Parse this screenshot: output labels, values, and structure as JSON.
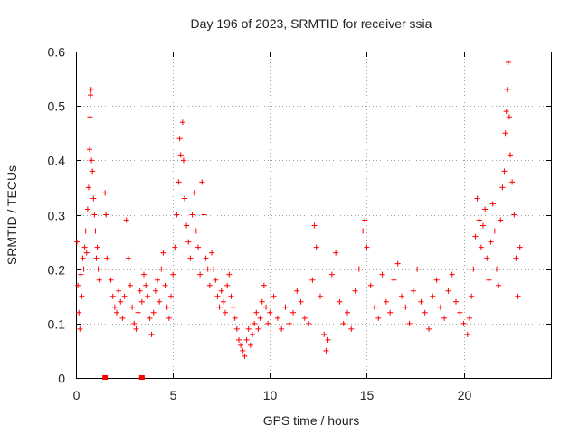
{
  "chart_data": {
    "type": "scatter",
    "title": "Day 196 of 2023, SRMTID for receiver ssia",
    "xlabel": "GPS time / hours",
    "ylabel": "SRMTID / TECUs",
    "xlim": [
      0,
      24.5
    ],
    "ylim": [
      0,
      0.6
    ],
    "xticks": [
      0,
      5,
      10,
      15,
      20
    ],
    "yticks": [
      0,
      0.1,
      0.2,
      0.3,
      0.4,
      0.5,
      0.6
    ],
    "xtick_labels": [
      "0",
      "5",
      "10",
      "15",
      "20"
    ],
    "ytick_labels": [
      "0",
      "0.1",
      "0.2",
      "0.3",
      "0.4",
      "0.5",
      "0.6"
    ],
    "grid": true,
    "marker": "+",
    "color": "#ff0000",
    "series": [
      {
        "name": "SRMTID",
        "marker": "+",
        "points": [
          [
            0.05,
            0.25
          ],
          [
            0.1,
            0.17
          ],
          [
            0.15,
            0.12
          ],
          [
            0.2,
            0.09
          ],
          [
            0.25,
            0.19
          ],
          [
            0.3,
            0.15
          ],
          [
            0.35,
            0.22
          ],
          [
            0.4,
            0.2
          ],
          [
            0.45,
            0.24
          ],
          [
            0.5,
            0.27
          ],
          [
            0.55,
            0.23
          ],
          [
            0.6,
            0.31
          ],
          [
            0.65,
            0.35
          ],
          [
            0.7,
            0.42
          ],
          [
            0.72,
            0.48
          ],
          [
            0.75,
            0.52
          ],
          [
            0.78,
            0.53
          ],
          [
            0.8,
            0.4
          ],
          [
            0.85,
            0.38
          ],
          [
            0.9,
            0.33
          ],
          [
            0.95,
            0.3
          ],
          [
            1.0,
            0.27
          ],
          [
            1.05,
            0.22
          ],
          [
            1.1,
            0.24
          ],
          [
            1.15,
            0.2
          ],
          [
            1.2,
            0.18
          ],
          [
            1.5,
            0.34
          ],
          [
            1.55,
            0.3
          ],
          [
            1.6,
            0.22
          ],
          [
            1.7,
            0.2
          ],
          [
            1.8,
            0.18
          ],
          [
            1.9,
            0.15
          ],
          [
            2.0,
            0.13
          ],
          [
            2.1,
            0.12
          ],
          [
            2.2,
            0.16
          ],
          [
            2.3,
            0.14
          ],
          [
            2.4,
            0.11
          ],
          [
            2.5,
            0.15
          ],
          [
            2.6,
            0.29
          ],
          [
            2.7,
            0.22
          ],
          [
            2.8,
            0.17
          ],
          [
            2.9,
            0.13
          ],
          [
            3.0,
            0.1
          ],
          [
            3.1,
            0.09
          ],
          [
            3.2,
            0.12
          ],
          [
            3.3,
            0.16
          ],
          [
            3.4,
            0.14
          ],
          [
            3.5,
            0.19
          ],
          [
            3.6,
            0.17
          ],
          [
            3.7,
            0.15
          ],
          [
            3.8,
            0.11
          ],
          [
            3.9,
            0.08
          ],
          [
            4.0,
            0.12
          ],
          [
            4.1,
            0.16
          ],
          [
            4.2,
            0.18
          ],
          [
            4.3,
            0.14
          ],
          [
            4.4,
            0.2
          ],
          [
            4.5,
            0.23
          ],
          [
            4.6,
            0.17
          ],
          [
            4.7,
            0.13
          ],
          [
            4.8,
            0.11
          ],
          [
            4.9,
            0.15
          ],
          [
            5.0,
            0.19
          ],
          [
            5.1,
            0.24
          ],
          [
            5.2,
            0.3
          ],
          [
            5.3,
            0.36
          ],
          [
            5.35,
            0.44
          ],
          [
            5.4,
            0.41
          ],
          [
            5.5,
            0.47
          ],
          [
            5.55,
            0.4
          ],
          [
            5.6,
            0.33
          ],
          [
            5.7,
            0.28
          ],
          [
            5.8,
            0.25
          ],
          [
            5.9,
            0.22
          ],
          [
            6.0,
            0.3
          ],
          [
            6.1,
            0.34
          ],
          [
            6.2,
            0.27
          ],
          [
            6.3,
            0.24
          ],
          [
            6.4,
            0.19
          ],
          [
            6.5,
            0.36
          ],
          [
            6.6,
            0.3
          ],
          [
            6.7,
            0.22
          ],
          [
            6.8,
            0.2
          ],
          [
            6.9,
            0.17
          ],
          [
            7.0,
            0.23
          ],
          [
            7.1,
            0.2
          ],
          [
            7.2,
            0.18
          ],
          [
            7.3,
            0.15
          ],
          [
            7.4,
            0.13
          ],
          [
            7.5,
            0.16
          ],
          [
            7.6,
            0.14
          ],
          [
            7.7,
            0.12
          ],
          [
            7.8,
            0.17
          ],
          [
            7.9,
            0.19
          ],
          [
            8.0,
            0.15
          ],
          [
            8.1,
            0.13
          ],
          [
            8.2,
            0.11
          ],
          [
            8.3,
            0.09
          ],
          [
            8.4,
            0.07
          ],
          [
            8.5,
            0.06
          ],
          [
            8.6,
            0.05
          ],
          [
            8.7,
            0.04
          ],
          [
            8.8,
            0.07
          ],
          [
            8.9,
            0.09
          ],
          [
            9.0,
            0.06
          ],
          [
            9.1,
            0.08
          ],
          [
            9.2,
            0.1
          ],
          [
            9.3,
            0.12
          ],
          [
            9.4,
            0.09
          ],
          [
            9.5,
            0.11
          ],
          [
            9.6,
            0.14
          ],
          [
            9.7,
            0.17
          ],
          [
            9.8,
            0.13
          ],
          [
            9.9,
            0.1
          ],
          [
            10.0,
            0.12
          ],
          [
            10.2,
            0.15
          ],
          [
            10.4,
            0.11
          ],
          [
            10.6,
            0.09
          ],
          [
            10.8,
            0.13
          ],
          [
            11.0,
            0.1
          ],
          [
            11.2,
            0.12
          ],
          [
            11.4,
            0.16
          ],
          [
            11.6,
            0.14
          ],
          [
            11.8,
            0.11
          ],
          [
            12.0,
            0.1
          ],
          [
            12.2,
            0.18
          ],
          [
            12.3,
            0.28
          ],
          [
            12.4,
            0.24
          ],
          [
            12.6,
            0.15
          ],
          [
            12.8,
            0.08
          ],
          [
            12.9,
            0.05
          ],
          [
            13.0,
            0.07
          ],
          [
            13.2,
            0.19
          ],
          [
            13.4,
            0.23
          ],
          [
            13.6,
            0.14
          ],
          [
            13.8,
            0.1
          ],
          [
            14.0,
            0.12
          ],
          [
            14.2,
            0.09
          ],
          [
            14.4,
            0.16
          ],
          [
            14.6,
            0.2
          ],
          [
            14.8,
            0.27
          ],
          [
            14.9,
            0.29
          ],
          [
            15.0,
            0.24
          ],
          [
            15.2,
            0.17
          ],
          [
            15.4,
            0.13
          ],
          [
            15.6,
            0.11
          ],
          [
            15.8,
            0.19
          ],
          [
            16.0,
            0.14
          ],
          [
            16.2,
            0.12
          ],
          [
            16.4,
            0.18
          ],
          [
            16.6,
            0.21
          ],
          [
            16.8,
            0.15
          ],
          [
            17.0,
            0.13
          ],
          [
            17.2,
            0.1
          ],
          [
            17.4,
            0.16
          ],
          [
            17.6,
            0.2
          ],
          [
            17.8,
            0.14
          ],
          [
            18.0,
            0.12
          ],
          [
            18.2,
            0.09
          ],
          [
            18.4,
            0.15
          ],
          [
            18.6,
            0.18
          ],
          [
            18.8,
            0.13
          ],
          [
            19.0,
            0.11
          ],
          [
            19.2,
            0.16
          ],
          [
            19.4,
            0.19
          ],
          [
            19.6,
            0.14
          ],
          [
            19.8,
            0.12
          ],
          [
            20.0,
            0.1
          ],
          [
            20.2,
            0.08
          ],
          [
            20.3,
            0.11
          ],
          [
            20.4,
            0.15
          ],
          [
            20.5,
            0.2
          ],
          [
            20.6,
            0.26
          ],
          [
            20.7,
            0.33
          ],
          [
            20.8,
            0.29
          ],
          [
            20.9,
            0.24
          ],
          [
            21.0,
            0.28
          ],
          [
            21.1,
            0.31
          ],
          [
            21.2,
            0.22
          ],
          [
            21.3,
            0.18
          ],
          [
            21.4,
            0.25
          ],
          [
            21.5,
            0.32
          ],
          [
            21.6,
            0.27
          ],
          [
            21.7,
            0.2
          ],
          [
            21.8,
            0.17
          ],
          [
            21.9,
            0.29
          ],
          [
            22.0,
            0.35
          ],
          [
            22.1,
            0.38
          ],
          [
            22.15,
            0.45
          ],
          [
            22.2,
            0.49
          ],
          [
            22.25,
            0.53
          ],
          [
            22.3,
            0.58
          ],
          [
            22.35,
            0.48
          ],
          [
            22.4,
            0.41
          ],
          [
            22.5,
            0.36
          ],
          [
            22.6,
            0.3
          ],
          [
            22.7,
            0.22
          ],
          [
            22.8,
            0.15
          ],
          [
            22.9,
            0.24
          ]
        ]
      }
    ],
    "xaxis_markers": [
      {
        "x": 1.5,
        "label": ""
      },
      {
        "x": 3.4,
        "label": ""
      }
    ]
  }
}
